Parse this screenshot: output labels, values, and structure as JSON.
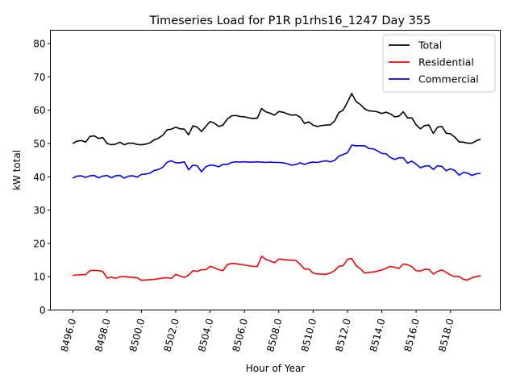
{
  "chart_data": {
    "type": "line",
    "title": "Timeseries Load for P1R p1rhs16_1247  Day 355",
    "xlabel": "Hour of Year",
    "ylabel": "kW total",
    "xlim": [
      8494.7,
      8520.9
    ],
    "ylim": [
      0,
      84
    ],
    "x_ticks": [
      8496,
      8498,
      8500,
      8502,
      8504,
      8506,
      8508,
      8510,
      8512,
      8514,
      8516,
      8518
    ],
    "x_tick_labels": [
      "8496.0",
      "8498.0",
      "8500.0",
      "8502.0",
      "8504.0",
      "8506.0",
      "8508.0",
      "8510.0",
      "8512.0",
      "8514.0",
      "8516.0",
      "8518.0"
    ],
    "y_ticks": [
      0,
      10,
      20,
      30,
      40,
      50,
      60,
      70,
      80
    ],
    "y_tick_labels": [
      "0",
      "10",
      "20",
      "30",
      "40",
      "50",
      "60",
      "70",
      "80"
    ],
    "grid": false,
    "legend_position": "top-right",
    "x_start": 8496,
    "x_step": 0.25,
    "series": [
      {
        "name": "Total",
        "color": "#000000",
        "values": [
          50.0,
          50.7,
          50.9,
          50.4,
          52.1,
          52.3,
          51.5,
          51.8,
          50.0,
          49.6,
          49.8,
          50.4,
          49.6,
          50.1,
          50.1,
          49.7,
          49.6,
          49.8,
          50.2,
          51.1,
          51.6,
          52.5,
          54.1,
          54.3,
          54.9,
          54.4,
          54.3,
          52.6,
          55.3,
          54.9,
          53.6,
          55.1,
          56.6,
          56.1,
          55.1,
          55.5,
          57.3,
          58.3,
          58.4,
          58.1,
          58.0,
          57.7,
          57.5,
          57.6,
          60.5,
          59.5,
          59.1,
          58.5,
          59.6,
          59.4,
          58.9,
          58.5,
          58.6,
          57.9,
          56.0,
          56.5,
          55.5,
          55.1,
          55.4,
          55.5,
          55.6,
          56.7,
          59.3,
          60.0,
          62.4,
          65.0,
          62.6,
          61.7,
          60.4,
          59.8,
          59.7,
          59.5,
          59.0,
          59.4,
          58.9,
          58.0,
          58.2,
          59.5,
          57.7,
          57.7,
          55.6,
          54.4,
          55.4,
          55.5,
          53.0,
          54.9,
          55.1,
          53.1,
          52.9,
          51.9,
          50.5,
          50.4,
          50.1,
          50.1,
          50.8,
          51.3
        ]
      },
      {
        "name": "Residential",
        "color": "#ff0000",
        "values": [
          10.4,
          10.5,
          10.6,
          10.6,
          11.8,
          11.9,
          11.8,
          11.6,
          9.6,
          9.9,
          9.5,
          10.0,
          10.0,
          9.9,
          9.8,
          9.7,
          8.9,
          9.0,
          9.1,
          9.2,
          9.4,
          9.6,
          9.7,
          9.5,
          10.7,
          10.2,
          9.8,
          10.5,
          11.8,
          11.6,
          12.1,
          12.1,
          13.1,
          12.7,
          12.1,
          11.8,
          13.6,
          14.0,
          13.9,
          13.7,
          13.5,
          13.3,
          13.1,
          13.1,
          16.1,
          15.2,
          14.7,
          14.2,
          15.3,
          15.2,
          15.0,
          15.0,
          14.9,
          13.7,
          12.3,
          12.3,
          11.1,
          10.8,
          10.8,
          10.7,
          11.1,
          11.8,
          13.1,
          13.3,
          15.2,
          15.5,
          13.3,
          12.4,
          11.1,
          11.3,
          11.4,
          11.7,
          12.0,
          12.5,
          13.1,
          12.8,
          12.5,
          13.8,
          13.6,
          13.0,
          11.8,
          11.7,
          12.2,
          12.2,
          10.8,
          11.6,
          12.0,
          11.3,
          10.5,
          10.0,
          10.1,
          9.2,
          9.0,
          9.7,
          10.0,
          10.3
        ]
      },
      {
        "name": "Commercial",
        "color": "#0000ff",
        "values": [
          39.6,
          40.2,
          40.3,
          39.8,
          40.3,
          40.4,
          39.7,
          40.2,
          40.4,
          39.7,
          40.3,
          40.4,
          39.6,
          40.2,
          40.3,
          39.9,
          40.7,
          40.8,
          41.1,
          41.9,
          42.2,
          42.9,
          44.4,
          44.8,
          44.2,
          44.2,
          44.5,
          42.1,
          43.5,
          43.3,
          41.5,
          43.0,
          43.5,
          43.4,
          43.0,
          43.7,
          43.7,
          44.3,
          44.5,
          44.4,
          44.5,
          44.4,
          44.4,
          44.5,
          44.4,
          44.3,
          44.4,
          44.3,
          44.3,
          44.2,
          43.9,
          43.5,
          43.7,
          44.2,
          43.7,
          44.2,
          44.4,
          44.3,
          44.6,
          44.8,
          44.5,
          44.9,
          46.2,
          46.7,
          47.2,
          49.5,
          49.3,
          49.3,
          49.3,
          48.5,
          48.4,
          47.8,
          47.0,
          46.9,
          45.8,
          45.2,
          45.7,
          45.7,
          44.1,
          44.7,
          43.8,
          42.7,
          43.2,
          43.3,
          42.2,
          43.3,
          43.1,
          41.8,
          42.4,
          41.9,
          40.5,
          41.3,
          41.1,
          40.4,
          40.9,
          41.0
        ]
      }
    ]
  }
}
